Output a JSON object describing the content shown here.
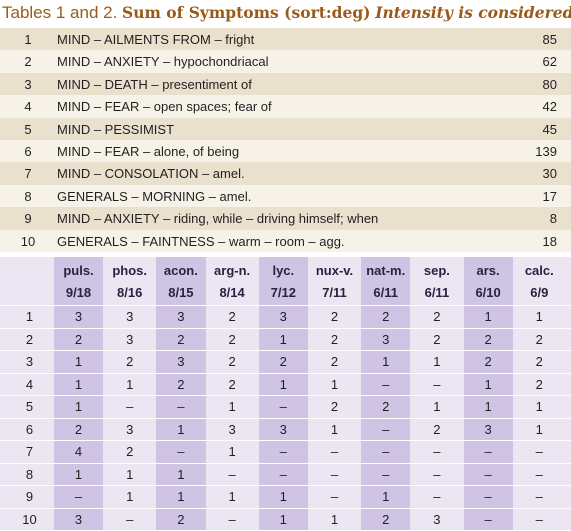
{
  "header": {
    "prefix": "Tables 1 and 2.",
    "title": "Sum of Symptoms (sort:deg)",
    "note": "Intensity is considered"
  },
  "table1": {
    "rows": [
      [
        1,
        "MIND – AILMENTS FROM – fright",
        85
      ],
      [
        2,
        "MIND – ANXIETY – hypochondriacal",
        62
      ],
      [
        3,
        "MIND – DEATH – presentiment of",
        80
      ],
      [
        4,
        "MIND – FEAR – open spaces; fear of",
        42
      ],
      [
        5,
        "MIND – PESSIMIST",
        45
      ],
      [
        6,
        "MIND – FEAR – alone, of being",
        139
      ],
      [
        7,
        "MIND – CONSOLATION – amel.",
        30
      ],
      [
        8,
        "GENERALS – MORNING – amel.",
        17
      ],
      [
        9,
        "MIND – ANXIETY – riding, while – driving himself; when",
        8
      ],
      [
        10,
        "GENERALS – FAINTNESS – warm – room – agg.",
        18
      ]
    ]
  },
  "table2": {
    "columns": [
      {
        "name": "puls.",
        "ratio": "9/18"
      },
      {
        "name": "phos.",
        "ratio": "8/16"
      },
      {
        "name": "acon.",
        "ratio": "8/15"
      },
      {
        "name": "arg-n.",
        "ratio": "8/14"
      },
      {
        "name": "lyc.",
        "ratio": "7/12"
      },
      {
        "name": "nux-v.",
        "ratio": "7/11"
      },
      {
        "name": "nat-m.",
        "ratio": "6/11"
      },
      {
        "name": "sep.",
        "ratio": "6/11"
      },
      {
        "name": "ars.",
        "ratio": "6/10"
      },
      {
        "name": "calc.",
        "ratio": "6/9"
      }
    ],
    "rows": [
      [
        1,
        3,
        3,
        3,
        2,
        3,
        2,
        2,
        2,
        1,
        1
      ],
      [
        2,
        2,
        3,
        2,
        2,
        1,
        2,
        3,
        2,
        2,
        2
      ],
      [
        3,
        1,
        2,
        3,
        2,
        2,
        2,
        1,
        1,
        2,
        2
      ],
      [
        4,
        1,
        1,
        2,
        2,
        1,
        1,
        "–",
        "–",
        1,
        2
      ],
      [
        5,
        1,
        "–",
        "–",
        1,
        "–",
        2,
        2,
        1,
        1,
        1
      ],
      [
        6,
        2,
        3,
        1,
        3,
        3,
        1,
        "–",
        2,
        3,
        1
      ],
      [
        7,
        4,
        2,
        "–",
        1,
        "–",
        "–",
        "–",
        "–",
        "–",
        "–"
      ],
      [
        8,
        1,
        1,
        1,
        "–",
        "–",
        "–",
        "–",
        "–",
        "–",
        "–"
      ],
      [
        9,
        "–",
        1,
        1,
        1,
        1,
        "–",
        1,
        "–",
        "–",
        "–"
      ],
      [
        10,
        3,
        "–",
        2,
        "–",
        1,
        1,
        2,
        3,
        "–",
        "–"
      ]
    ]
  }
}
